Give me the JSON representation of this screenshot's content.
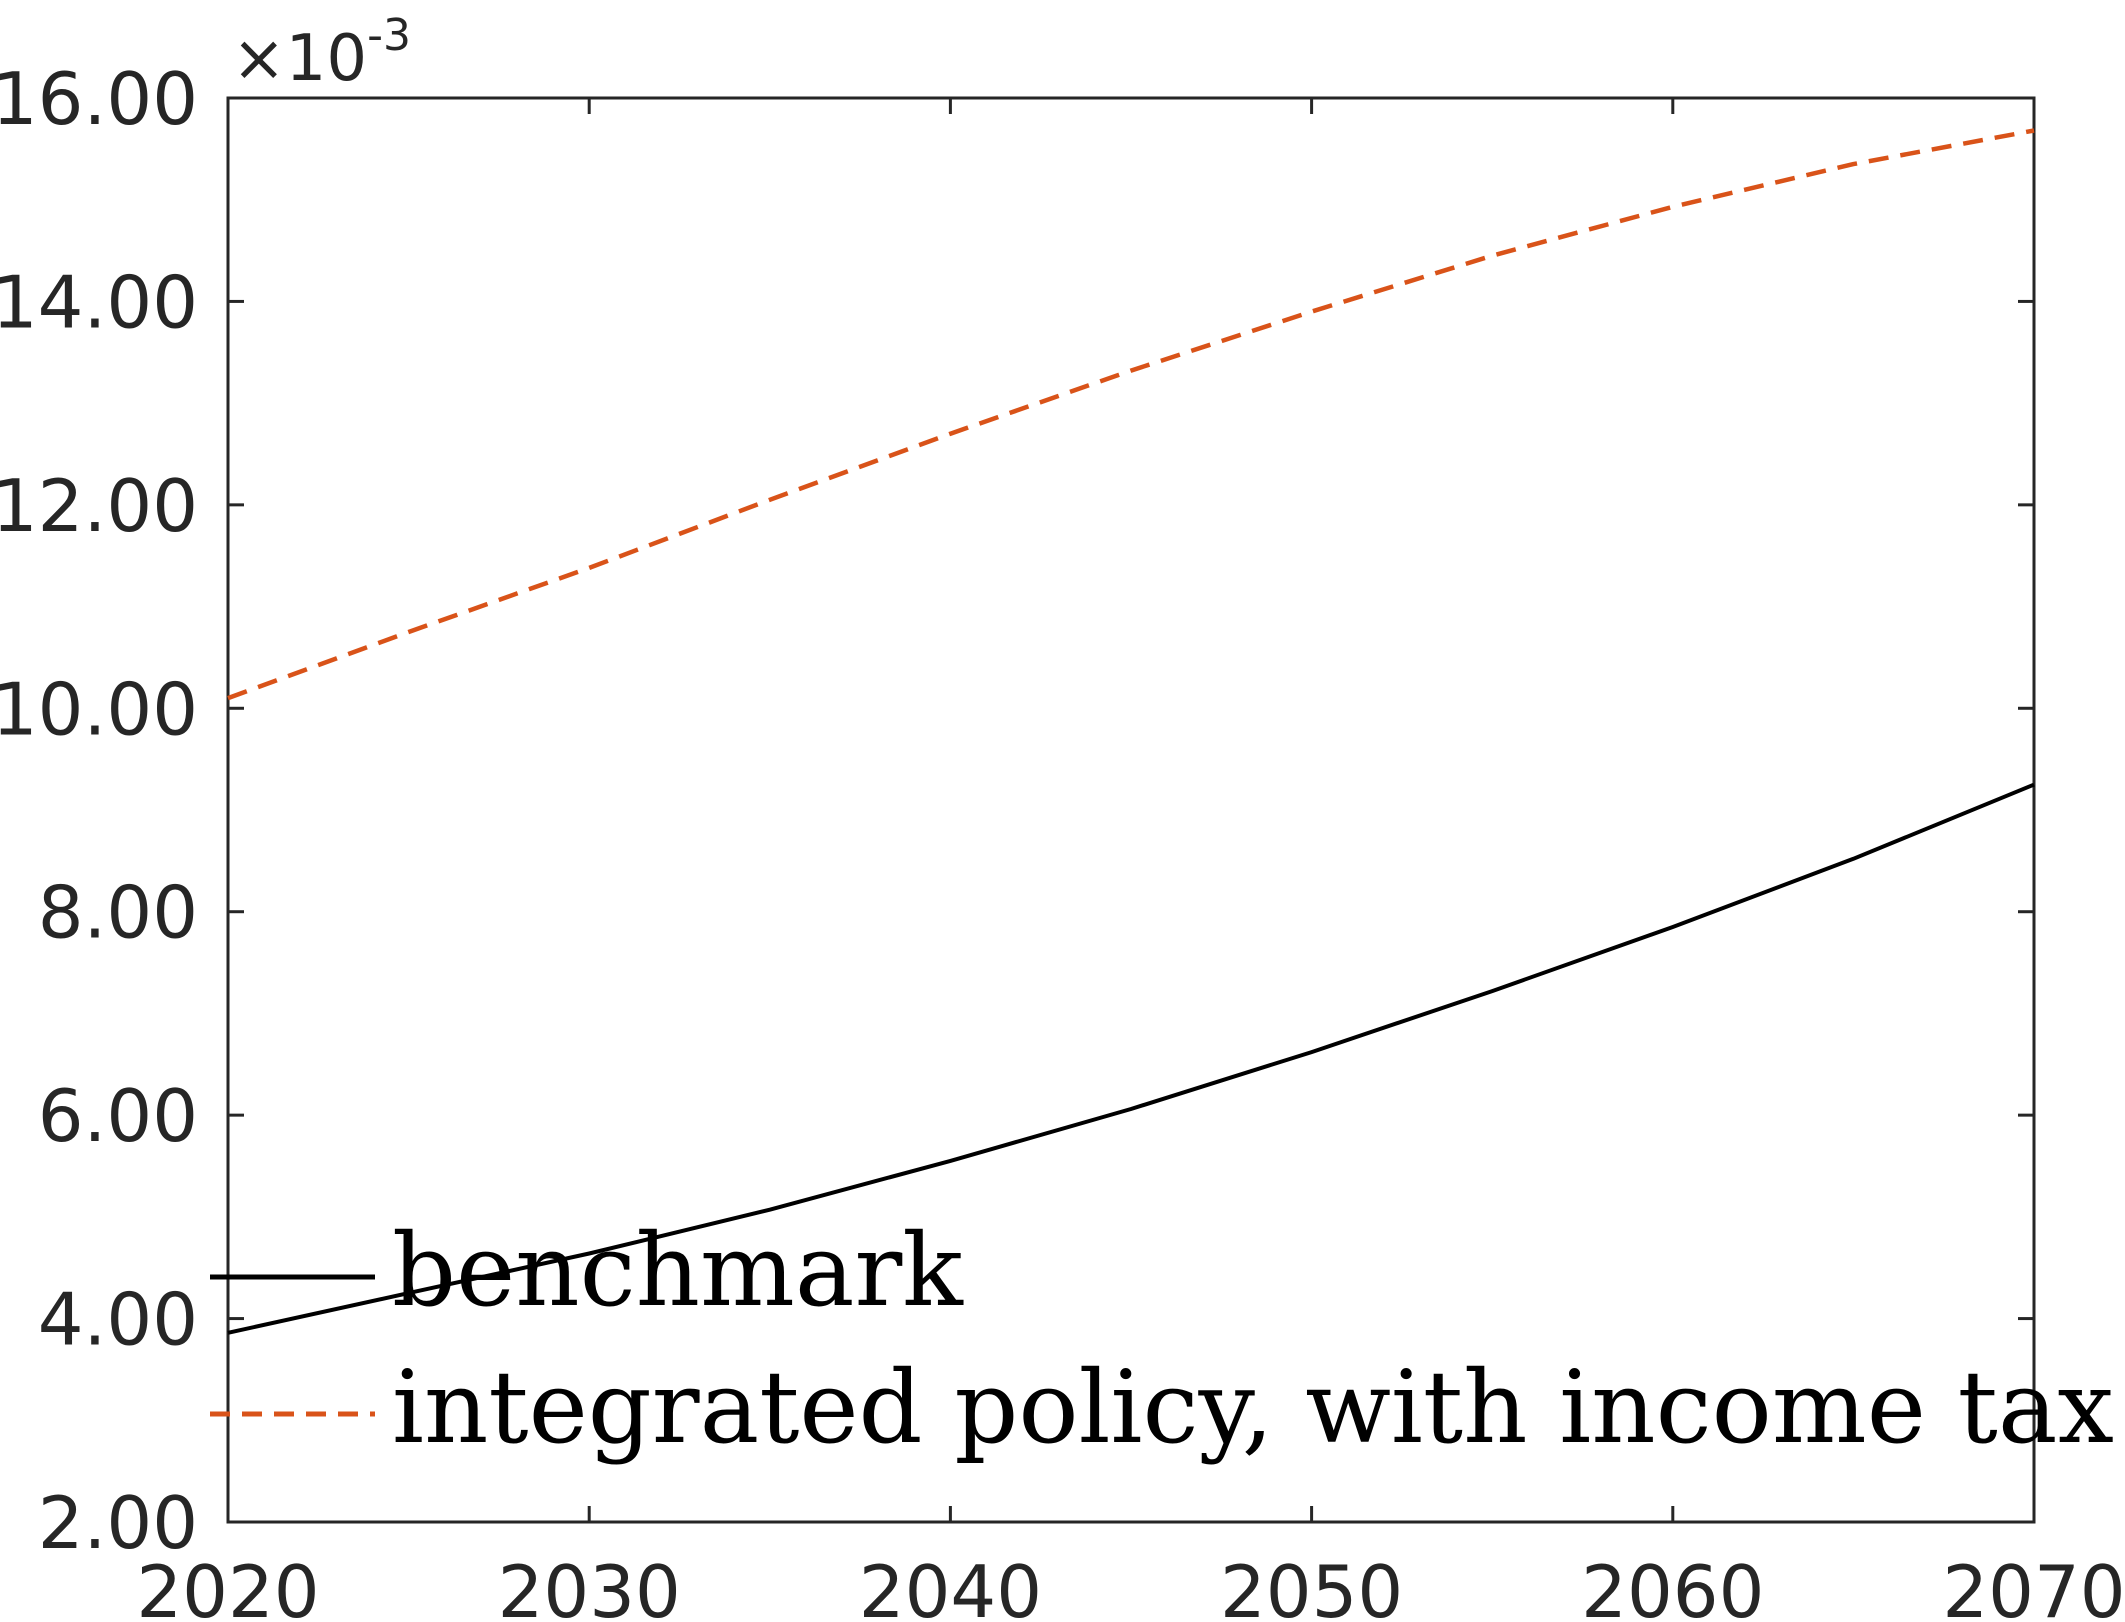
{
  "chart_data": {
    "type": "line",
    "xlim": [
      2020,
      2070
    ],
    "ylim": [
      2.0,
      16.0
    ],
    "xticks": [
      "2020",
      "2030",
      "2040",
      "2050",
      "2060",
      "2070"
    ],
    "yticks": [
      "2.00",
      "4.00",
      "6.00",
      "8.00",
      "10.00",
      "12.00",
      "14.00",
      "16.00"
    ],
    "y_exponent": {
      "times": "×10",
      "power": "-3"
    },
    "grid": false,
    "legend_position": "bottom-left",
    "x": [
      2020,
      2025,
      2030,
      2035,
      2040,
      2045,
      2050,
      2055,
      2060,
      2065,
      2070
    ],
    "series": [
      {
        "name": "benchmark",
        "color": "#000000",
        "style": "solid",
        "values": [
          3.86,
          4.25,
          4.64,
          5.07,
          5.55,
          6.06,
          6.62,
          7.22,
          7.85,
          8.52,
          9.25
        ]
      },
      {
        "name": "integrated policy, with income tax",
        "color": "#D95319",
        "style": "dashed",
        "values": [
          10.1,
          10.75,
          11.38,
          12.05,
          12.7,
          13.32,
          13.9,
          14.45,
          14.93,
          15.35,
          15.68
        ]
      }
    ]
  }
}
